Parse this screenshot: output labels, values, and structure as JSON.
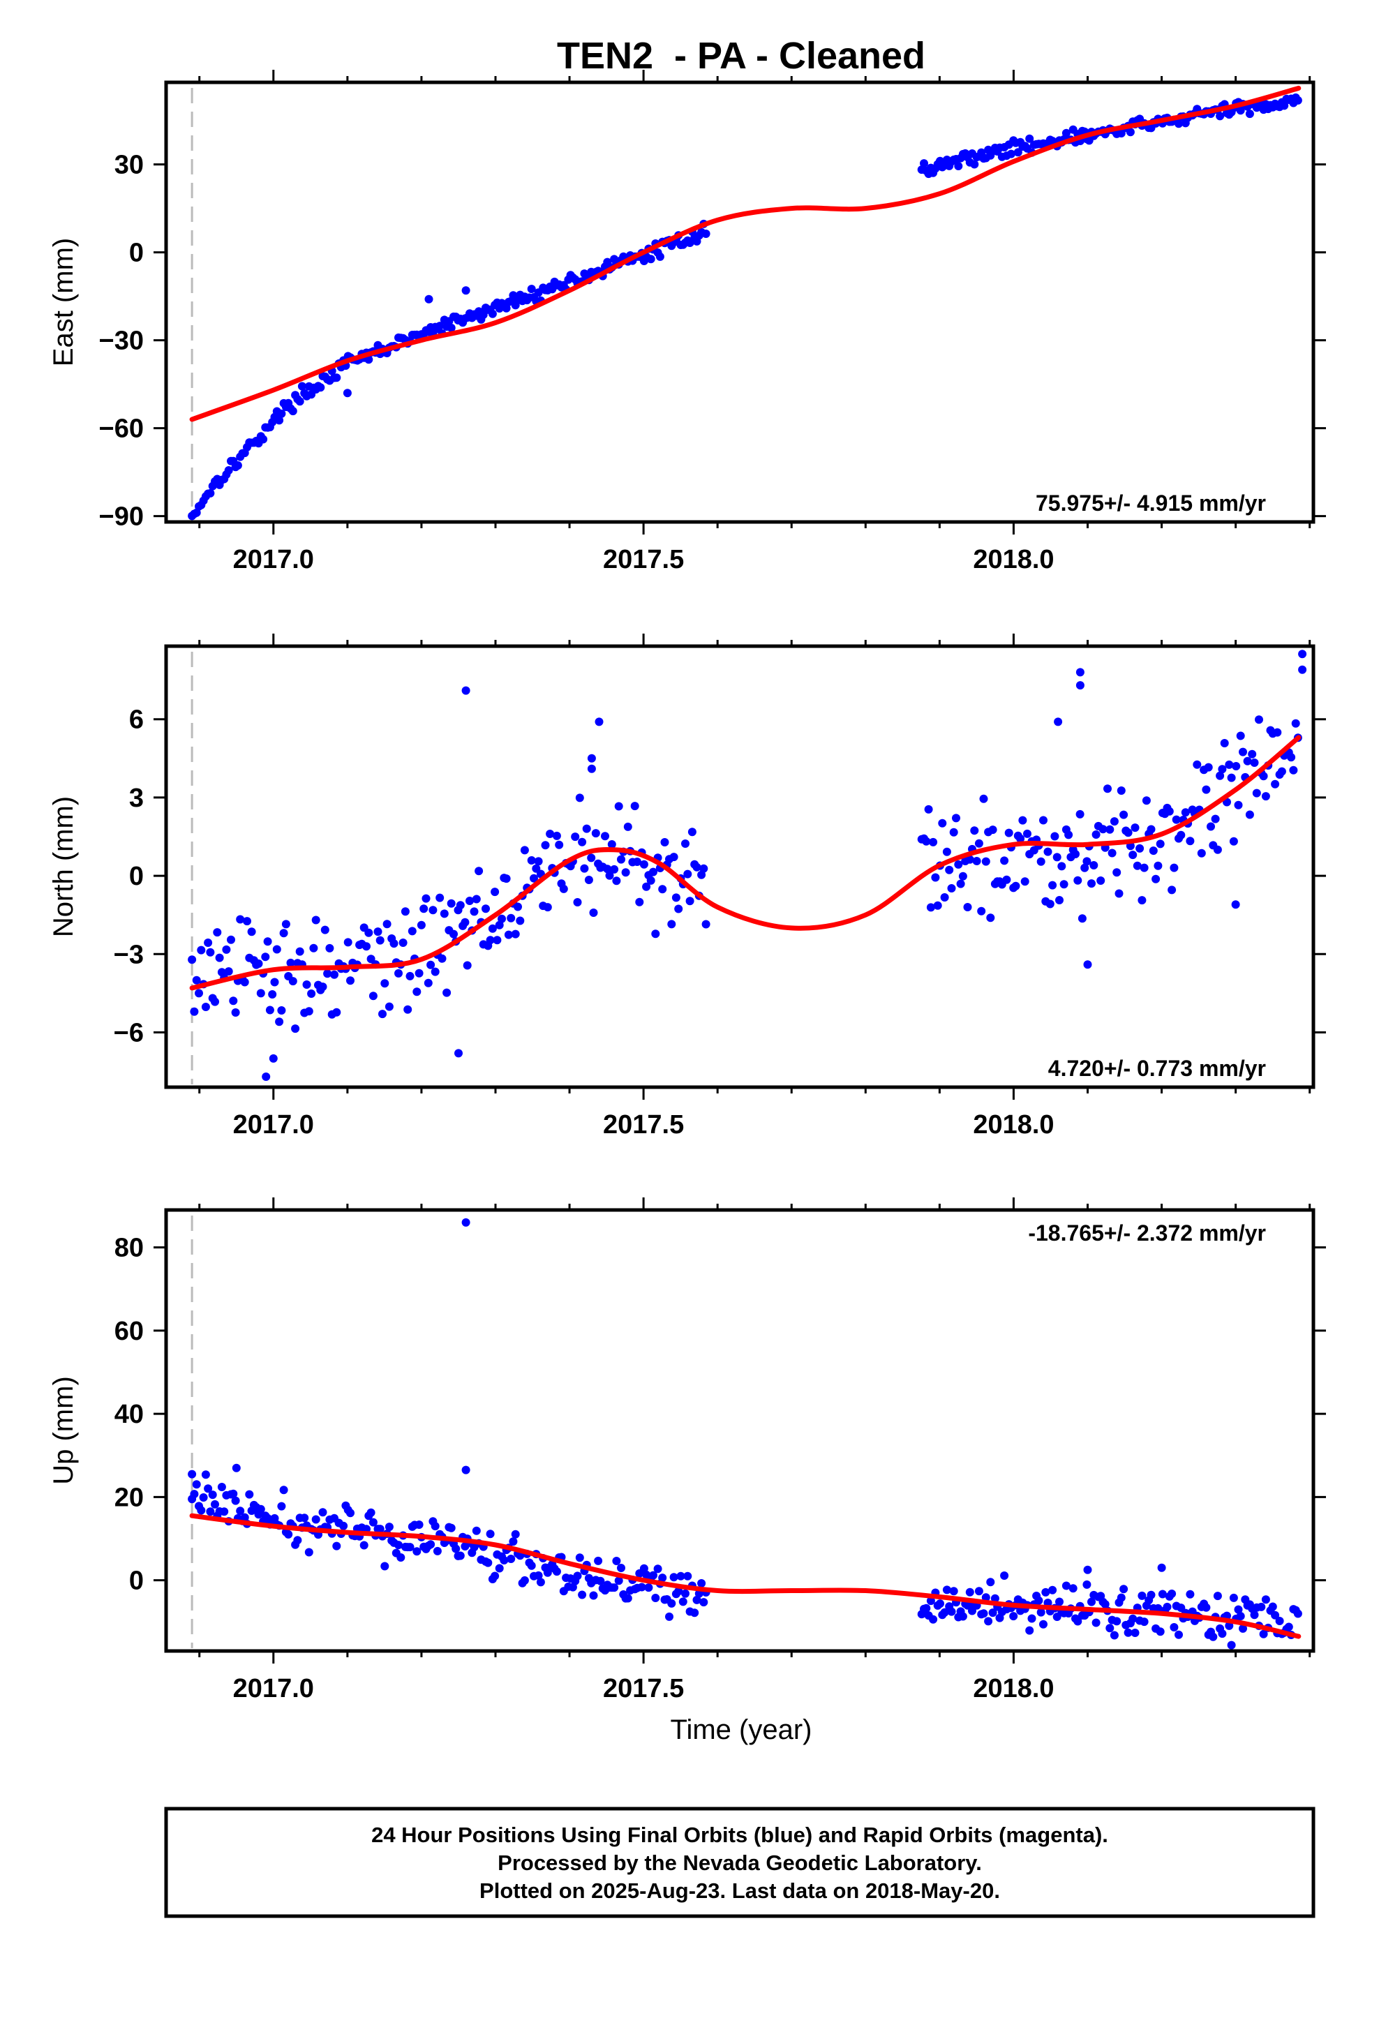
{
  "title": "TEN2  - PA - Cleaned",
  "xlabel": "Time (year)",
  "footer": [
    "24 Hour Positions Using Final Orbits (blue) and Rapid Orbits (magenta).",
    "Processed by the Nevada Geodetic Laboratory.",
    "Plotted on 2025-Aug-23. Last data on 2018-May-20."
  ],
  "colors": {
    "data": "#0000ff",
    "fit": "#ff0000",
    "frame": "#000000",
    "marker": "#bbbbbb"
  },
  "chart_data": [
    {
      "type": "scatter",
      "name": "east",
      "ylabel": "East (mm)",
      "rate_label": "75.975+/- 4.915 mm/yr",
      "rate_position": "bottom-right",
      "xlim": [
        2016.855,
        2018.405
      ],
      "ylim": [
        -92,
        58
      ],
      "xticks": [
        2017.0,
        2017.5,
        2018.0
      ],
      "xtick_labels": [
        "2017.0",
        "2017.5",
        "2018.0"
      ],
      "yticks": [
        -90,
        -60,
        -30,
        0,
        30
      ],
      "ytick_labels": [
        "−90",
        "−60",
        "−30",
        "0",
        "30"
      ],
      "marker_line_x": 2016.89,
      "gaps": [
        [
          2017.585,
          2017.875
        ]
      ],
      "outliers": [
        [
          2017.21,
          -16
        ],
        [
          2017.26,
          -13
        ],
        [
          2017.1,
          -48
        ],
        [
          2018.09,
          38
        ]
      ],
      "data_x_range": [
        2016.89,
        2018.385
      ],
      "data_trend": [
        [
          2016.89,
          -90
        ],
        [
          2016.92,
          -79
        ],
        [
          2016.97,
          -66
        ],
        [
          2017.02,
          -52
        ],
        [
          2017.1,
          -38
        ],
        [
          2017.2,
          -28
        ],
        [
          2017.3,
          -19
        ],
        [
          2017.4,
          -10
        ],
        [
          2017.5,
          -1
        ],
        [
          2017.58,
          7
        ],
        [
          2017.875,
          28
        ],
        [
          2017.95,
          33
        ],
        [
          2018.05,
          38
        ],
        [
          2018.15,
          42
        ],
        [
          2018.25,
          47
        ],
        [
          2018.385,
          52
        ]
      ],
      "data_noise": 1.5,
      "fit": [
        [
          2016.89,
          -57
        ],
        [
          2017.0,
          -47
        ],
        [
          2017.1,
          -37
        ],
        [
          2017.2,
          -30
        ],
        [
          2017.3,
          -24
        ],
        [
          2017.4,
          -13
        ],
        [
          2017.5,
          0
        ],
        [
          2017.6,
          11
        ],
        [
          2017.7,
          15
        ],
        [
          2017.8,
          15
        ],
        [
          2017.9,
          20
        ],
        [
          2018.0,
          31
        ],
        [
          2018.1,
          40
        ],
        [
          2018.2,
          45
        ],
        [
          2018.3,
          50
        ],
        [
          2018.385,
          56
        ]
      ]
    },
    {
      "type": "scatter",
      "name": "north",
      "ylabel": "North (mm)",
      "rate_label": "4.720+/- 0.773 mm/yr",
      "rate_position": "bottom-right",
      "xlim": [
        2016.855,
        2018.405
      ],
      "ylim": [
        -8.1,
        8.8
      ],
      "xticks": [
        2017.0,
        2017.5,
        2018.0
      ],
      "xtick_labels": [
        "2017.0",
        "2017.5",
        "2018.0"
      ],
      "yticks": [
        -6,
        -3,
        0,
        3,
        6
      ],
      "ytick_labels": [
        "−6",
        "−3",
        "0",
        "3",
        "6"
      ],
      "marker_line_x": 2016.89,
      "gaps": [
        [
          2017.585,
          2017.875
        ]
      ],
      "outliers": [
        [
          2017.26,
          7.1
        ],
        [
          2017.44,
          5.9
        ],
        [
          2017.43,
          4.5
        ],
        [
          2017.43,
          4.1
        ],
        [
          2018.09,
          7.3
        ],
        [
          2018.09,
          7.8
        ],
        [
          2018.06,
          5.9
        ],
        [
          2018.1,
          -3.4
        ],
        [
          2018.3,
          -1.1
        ],
        [
          2018.39,
          8.5
        ],
        [
          2018.39,
          7.9
        ],
        [
          2017.0,
          -7.0
        ],
        [
          2016.99,
          -7.7
        ],
        [
          2017.25,
          -6.8
        ]
      ],
      "data_x_range": [
        2016.89,
        2018.385
      ],
      "data_trend": [
        [
          2016.89,
          -4.0
        ],
        [
          2017.0,
          -3.6
        ],
        [
          2017.1,
          -3.5
        ],
        [
          2017.2,
          -3.0
        ],
        [
          2017.3,
          -1.0
        ],
        [
          2017.4,
          0.8
        ],
        [
          2017.5,
          0.6
        ],
        [
          2017.58,
          -0.8
        ],
        [
          2017.875,
          0.5
        ],
        [
          2017.95,
          0.8
        ],
        [
          2018.05,
          0.9
        ],
        [
          2018.15,
          1.2
        ],
        [
          2018.25,
          2.5
        ],
        [
          2018.385,
          5.0
        ]
      ],
      "data_noise": 1.3,
      "fit": [
        [
          2016.89,
          -4.3
        ],
        [
          2017.0,
          -3.6
        ],
        [
          2017.1,
          -3.5
        ],
        [
          2017.2,
          -3.2
        ],
        [
          2017.3,
          -1.5
        ],
        [
          2017.4,
          0.6
        ],
        [
          2017.46,
          1.0
        ],
        [
          2017.52,
          0.5
        ],
        [
          2017.6,
          -1.2
        ],
        [
          2017.7,
          -2.0
        ],
        [
          2017.8,
          -1.5
        ],
        [
          2017.9,
          0.4
        ],
        [
          2018.0,
          1.2
        ],
        [
          2018.1,
          1.2
        ],
        [
          2018.2,
          1.6
        ],
        [
          2018.3,
          3.3
        ],
        [
          2018.385,
          5.3
        ]
      ]
    },
    {
      "type": "scatter",
      "name": "up",
      "ylabel": "Up (mm)",
      "rate_label": "-18.765+/- 2.372 mm/yr",
      "rate_position": "top-right",
      "xlim": [
        2016.855,
        2018.405
      ],
      "ylim": [
        -17,
        89
      ],
      "xticks": [
        2017.0,
        2017.5,
        2018.0
      ],
      "xtick_labels": [
        "2017.0",
        "2017.5",
        "2018.0"
      ],
      "yticks": [
        0,
        20,
        40,
        60,
        80
      ],
      "ytick_labels": [
        "0",
        "20",
        "40",
        "60",
        "80"
      ],
      "marker_line_x": 2016.89,
      "gaps": [
        [
          2017.585,
          2017.875
        ]
      ],
      "outliers": [
        [
          2017.26,
          86
        ],
        [
          2017.26,
          26.5
        ],
        [
          2016.89,
          25.5
        ],
        [
          2016.95,
          27
        ],
        [
          2018.2,
          3
        ],
        [
          2018.1,
          2.5
        ]
      ],
      "data_x_range": [
        2016.89,
        2018.385
      ],
      "data_trend": [
        [
          2016.89,
          21
        ],
        [
          2017.0,
          14
        ],
        [
          2017.1,
          12
        ],
        [
          2017.2,
          10
        ],
        [
          2017.3,
          7
        ],
        [
          2017.4,
          2
        ],
        [
          2017.5,
          -1
        ],
        [
          2017.58,
          -5
        ],
        [
          2017.875,
          -7
        ],
        [
          2017.95,
          -6
        ],
        [
          2018.05,
          -7
        ],
        [
          2018.15,
          -7
        ],
        [
          2018.25,
          -8
        ],
        [
          2018.385,
          -10
        ]
      ],
      "data_noise": 3.5,
      "fit": [
        [
          2016.89,
          15.5
        ],
        [
          2017.0,
          13
        ],
        [
          2017.1,
          11.5
        ],
        [
          2017.2,
          10.5
        ],
        [
          2017.3,
          8.5
        ],
        [
          2017.4,
          4
        ],
        [
          2017.5,
          0
        ],
        [
          2017.6,
          -2.5
        ],
        [
          2017.7,
          -2.5
        ],
        [
          2017.8,
          -2.5
        ],
        [
          2017.9,
          -4
        ],
        [
          2018.0,
          -6
        ],
        [
          2018.1,
          -7
        ],
        [
          2018.2,
          -8
        ],
        [
          2018.3,
          -10
        ],
        [
          2018.385,
          -13.5
        ]
      ]
    }
  ]
}
